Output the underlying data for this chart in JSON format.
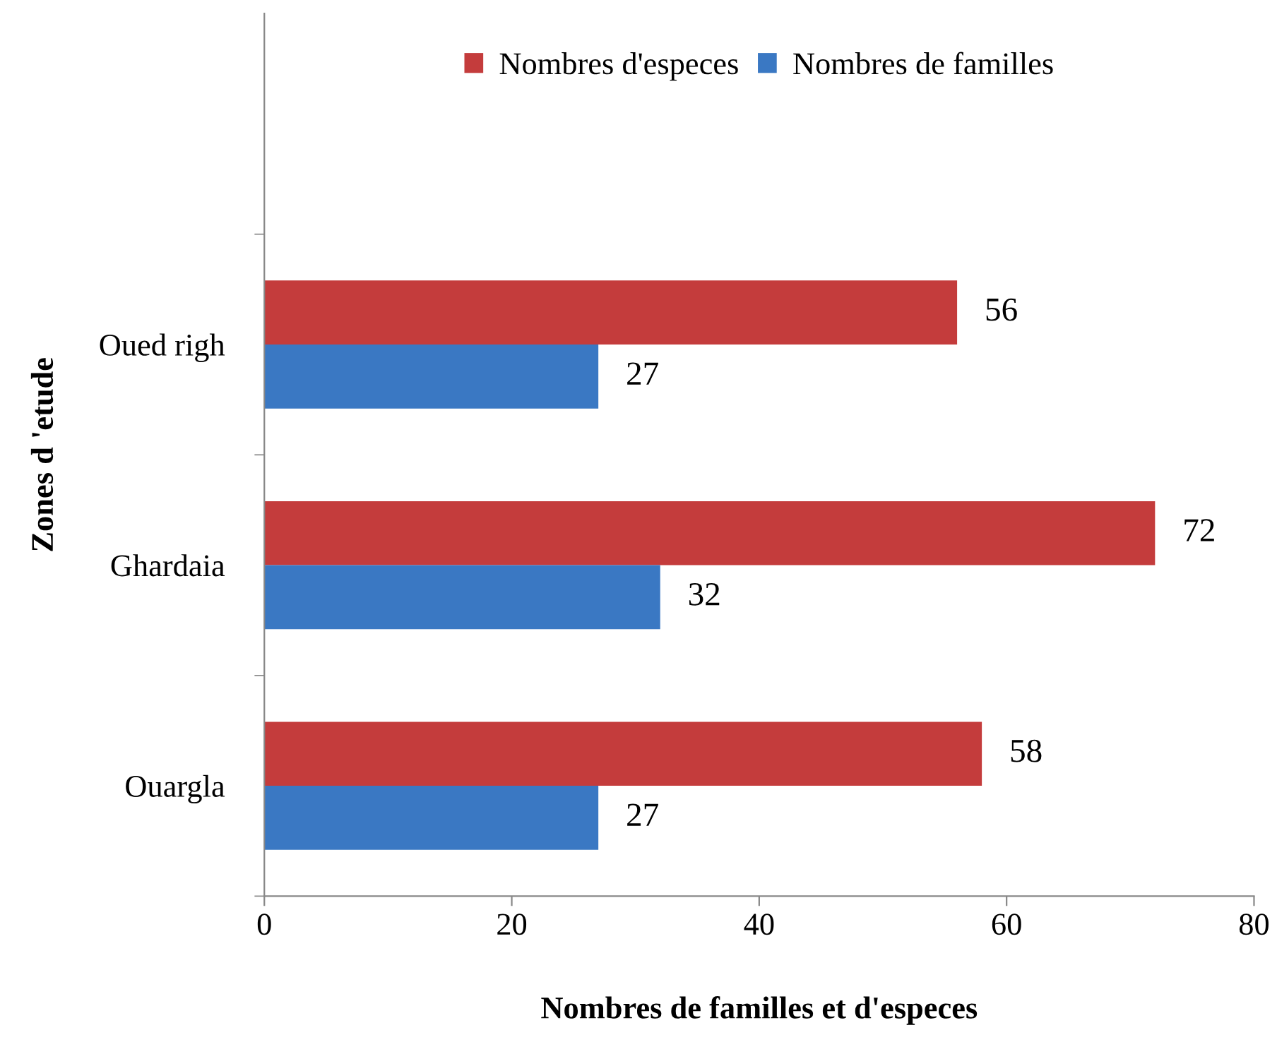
{
  "chart_data": {
    "type": "bar",
    "orientation": "horizontal",
    "categories": [
      "Oued righ",
      "Ghardaia",
      "Ouargla"
    ],
    "series": [
      {
        "name": "Nombres d'especes",
        "color": "#c43c3c",
        "values": [
          56,
          72,
          58
        ]
      },
      {
        "name": "Nombres de familles",
        "color": "#3a78c3",
        "values": [
          27,
          32,
          27
        ]
      }
    ],
    "xlim": [
      0,
      80
    ],
    "xticks": [
      0,
      20,
      40,
      60,
      80
    ],
    "xlabel": "Nombres de familles et d'especes",
    "ylabel": "Zones d 'etude",
    "data_labels": true,
    "grid": false,
    "legend": "top"
  }
}
